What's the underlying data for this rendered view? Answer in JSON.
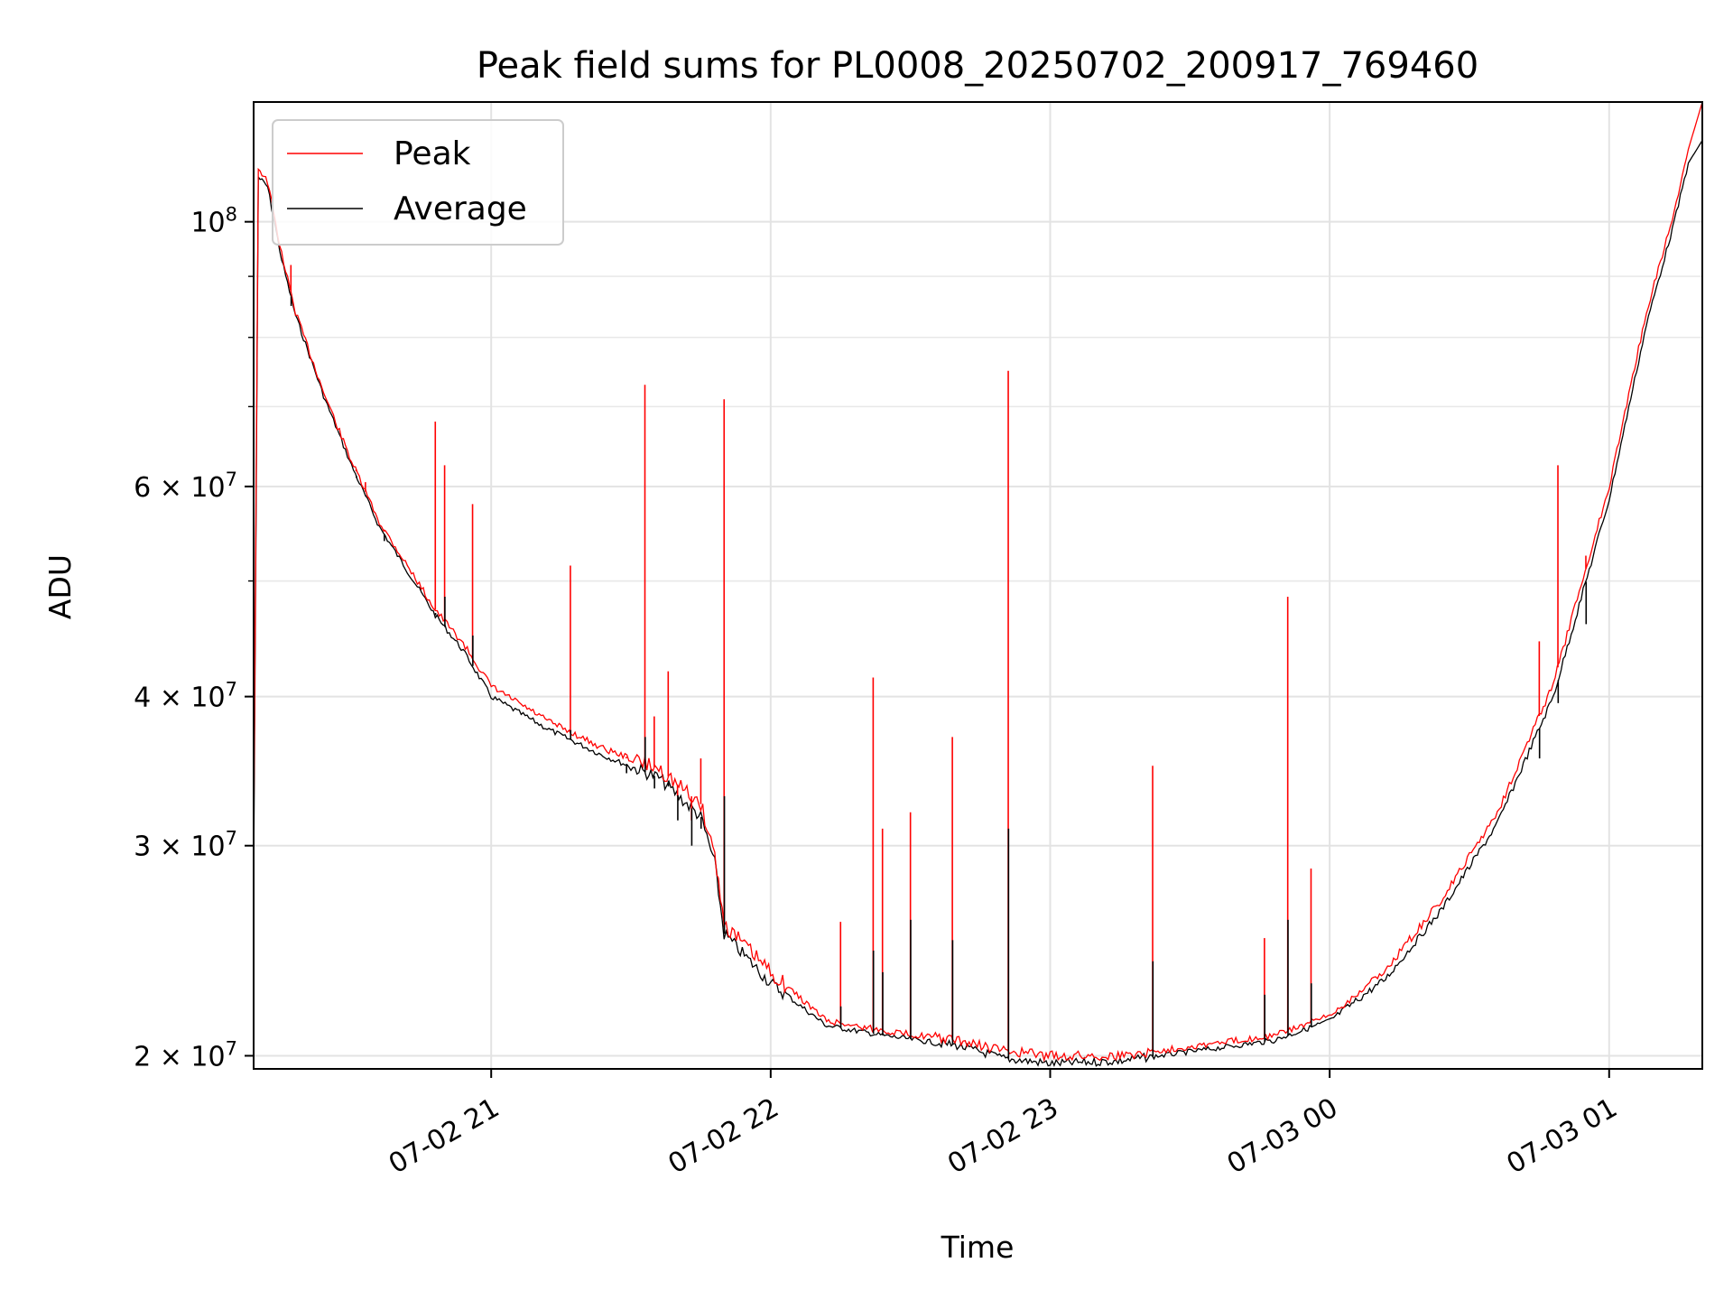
{
  "chart_data": {
    "type": "line",
    "title": "Peak field sums for PL0008_20250702_200917_769460",
    "xlabel": "Time",
    "ylabel": "ADU",
    "y_scale": "log",
    "xlim": [
      "2025-07-02 20:09",
      "2025-07-03 01:20"
    ],
    "ylim": [
      19500000,
      126000000
    ],
    "grid": true,
    "legend_placement": "top-left",
    "x_ticks": [
      {
        "value": "2025-07-02 21:00",
        "label": "07-02 21"
      },
      {
        "value": "2025-07-02 22:00",
        "label": "07-02 22"
      },
      {
        "value": "2025-07-02 23:00",
        "label": "07-02 23"
      },
      {
        "value": "2025-07-03 00:00",
        "label": "07-03 00"
      },
      {
        "value": "2025-07-03 01:00",
        "label": "07-03 01"
      }
    ],
    "y_ticks": [
      {
        "value": 20000000,
        "label": "2 × 10^7",
        "mantissa": "2 × 10",
        "exp": "7"
      },
      {
        "value": 30000000,
        "label": "3 × 10^7",
        "mantissa": "3 × 10",
        "exp": "7"
      },
      {
        "value": 40000000,
        "label": "4 × 10^7",
        "mantissa": "4 × 10",
        "exp": "7"
      },
      {
        "value": 60000000,
        "label": "6 × 10^7",
        "mantissa": "6 × 10",
        "exp": "7"
      },
      {
        "value": 100000000,
        "label": "10^8",
        "mantissa": "10",
        "exp": "8"
      }
    ],
    "series": [
      {
        "name": "Peak",
        "color": "#ff0000",
        "points": [
          [
            "2025-07-02 20:09",
            30000000
          ],
          [
            "2025-07-02 20:10",
            111000000
          ],
          [
            "2025-07-02 20:12",
            108000000
          ],
          [
            "2025-07-02 20:15",
            94000000
          ],
          [
            "2025-07-02 20:18",
            84000000
          ],
          [
            "2025-07-02 20:24",
            72000000
          ],
          [
            "2025-07-02 20:30",
            63000000
          ],
          [
            "2025-07-02 20:36",
            56000000
          ],
          [
            "2025-07-02 20:42",
            51500000
          ],
          [
            "2025-07-02 20:48",
            47300000
          ],
          [
            "2025-07-02 20:54",
            44300000
          ],
          [
            "2025-07-02 21:00",
            40800000
          ],
          [
            "2025-07-02 21:12",
            38200000
          ],
          [
            "2025-07-02 21:24",
            36200000
          ],
          [
            "2025-07-02 21:36",
            34800000
          ],
          [
            "2025-07-02 21:45",
            32500000
          ],
          [
            "2025-07-02 21:48",
            29500000
          ],
          [
            "2025-07-02 21:50",
            25800000
          ],
          [
            "2025-07-02 22:00",
            23500000
          ],
          [
            "2025-07-02 22:12",
            21400000
          ],
          [
            "2025-07-02 22:24",
            21000000
          ],
          [
            "2025-07-02 22:40",
            20600000
          ],
          [
            "2025-07-02 22:50",
            20200000
          ],
          [
            "2025-07-02 23:00",
            20000000
          ],
          [
            "2025-07-02 23:15",
            20000000
          ],
          [
            "2025-07-02 23:36",
            20500000
          ],
          [
            "2025-07-02 23:48",
            20800000
          ],
          [
            "2025-07-03 00:00",
            21600000
          ],
          [
            "2025-07-03 00:12",
            23600000
          ],
          [
            "2025-07-03 00:24",
            27000000
          ],
          [
            "2025-07-03 00:36",
            32000000
          ],
          [
            "2025-07-03 00:48",
            41000000
          ],
          [
            "2025-07-03 01:00",
            60000000
          ],
          [
            "2025-07-03 01:08",
            84000000
          ],
          [
            "2025-07-03 01:14",
            102000000
          ],
          [
            "2025-07-03 01:17",
            115000000
          ],
          [
            "2025-07-03 01:20",
            126000000
          ]
        ]
      },
      {
        "name": "Average",
        "color": "#000000",
        "points": [
          [
            "2025-07-02 20:09",
            28000000
          ],
          [
            "2025-07-02 20:10",
            109000000
          ],
          [
            "2025-07-02 20:12",
            107000000
          ],
          [
            "2025-07-02 20:15",
            93000000
          ],
          [
            "2025-07-02 20:18",
            83500000
          ],
          [
            "2025-07-02 20:24",
            71500000
          ],
          [
            "2025-07-02 20:30",
            62500000
          ],
          [
            "2025-07-02 20:36",
            55500000
          ],
          [
            "2025-07-02 20:42",
            51000000
          ],
          [
            "2025-07-02 20:48",
            46800000
          ],
          [
            "2025-07-02 20:54",
            43700000
          ],
          [
            "2025-07-02 21:00",
            40000000
          ],
          [
            "2025-07-02 21:12",
            37600000
          ],
          [
            "2025-07-02 21:24",
            35700000
          ],
          [
            "2025-07-02 21:36",
            34200000
          ],
          [
            "2025-07-02 21:45",
            31700000
          ],
          [
            "2025-07-02 21:48",
            29000000
          ],
          [
            "2025-07-02 21:50",
            25300000
          ],
          [
            "2025-07-02 22:00",
            23000000
          ],
          [
            "2025-07-02 22:12",
            21200000
          ],
          [
            "2025-07-02 22:24",
            20800000
          ],
          [
            "2025-07-02 22:40",
            20400000
          ],
          [
            "2025-07-02 22:50",
            19900000
          ],
          [
            "2025-07-02 23:00",
            19700000
          ],
          [
            "2025-07-02 23:15",
            19800000
          ],
          [
            "2025-07-02 23:36",
            20300000
          ],
          [
            "2025-07-02 23:48",
            20600000
          ],
          [
            "2025-07-03 00:00",
            21400000
          ],
          [
            "2025-07-03 00:12",
            23200000
          ],
          [
            "2025-07-03 00:24",
            26500000
          ],
          [
            "2025-07-03 00:36",
            31300000
          ],
          [
            "2025-07-03 00:48",
            40000000
          ],
          [
            "2025-07-03 01:00",
            58500000
          ],
          [
            "2025-07-03 01:08",
            82000000
          ],
          [
            "2025-07-03 01:14",
            100000000
          ],
          [
            "2025-07-03 01:17",
            112000000
          ],
          [
            "2025-07-03 01:20",
            117000000
          ]
        ]
      }
    ],
    "spikes": [
      {
        "time": "2025-07-02 20:17",
        "peak": 92000000,
        "average": 85000000
      },
      {
        "time": "2025-07-02 20:31",
        "peak": 62000000,
        "average": 61000000
      },
      {
        "time": "2025-07-02 20:33",
        "peak": 60500000,
        "average": 59000000
      },
      {
        "time": "2025-07-02 20:37",
        "peak": 55000000,
        "average": 54000000
      },
      {
        "time": "2025-07-02 20:48",
        "peak": 68000000,
        "average": 47000000
      },
      {
        "time": "2025-07-02 20:50",
        "peak": 62500000,
        "average": 48500000
      },
      {
        "time": "2025-07-02 20:56",
        "peak": 58000000,
        "average": 45000000
      },
      {
        "time": "2025-07-02 21:17",
        "peak": 51500000,
        "average": 37500000
      },
      {
        "time": "2025-07-02 21:29",
        "peak": 35500000,
        "average": 34500000
      },
      {
        "time": "2025-07-02 21:33",
        "peak": 73000000,
        "average": 37000000
      },
      {
        "time": "2025-07-02 21:35",
        "peak": 38500000,
        "average": 33500000
      },
      {
        "time": "2025-07-02 21:38",
        "peak": 42000000,
        "average": 34000000
      },
      {
        "time": "2025-07-02 21:40",
        "peak": 33000000,
        "average": 31500000
      },
      {
        "time": "2025-07-02 21:43",
        "peak": 31500000,
        "average": 30000000
      },
      {
        "time": "2025-07-02 21:45",
        "peak": 35500000,
        "average": 31000000
      },
      {
        "time": "2025-07-02 21:50",
        "peak": 71000000,
        "average": 33000000
      },
      {
        "time": "2025-07-02 22:15",
        "peak": 25900000,
        "average": 22000000
      },
      {
        "time": "2025-07-02 22:22",
        "peak": 41500000,
        "average": 24500000
      },
      {
        "time": "2025-07-02 22:24",
        "peak": 31000000,
        "average": 23500000
      },
      {
        "time": "2025-07-02 22:30",
        "peak": 32000000,
        "average": 26000000
      },
      {
        "time": "2025-07-02 22:39",
        "peak": 37000000,
        "average": 25000000
      },
      {
        "time": "2025-07-02 22:51",
        "peak": 75000000,
        "average": 31000000
      },
      {
        "time": "2025-07-02 23:22",
        "peak": 35000000,
        "average": 24000000
      },
      {
        "time": "2025-07-02 23:46",
        "peak": 25100000,
        "average": 22500000
      },
      {
        "time": "2025-07-02 23:51",
        "peak": 48500000,
        "average": 26000000
      },
      {
        "time": "2025-07-02 23:56",
        "peak": 28700000,
        "average": 23000000
      },
      {
        "time": "2025-07-03 00:45",
        "peak": 44500000,
        "average": 35500000
      },
      {
        "time": "2025-07-03 00:49",
        "peak": 62500000,
        "average": 39500000
      },
      {
        "time": "2025-07-03 00:55",
        "peak": 52500000,
        "average": 46000000
      }
    ]
  }
}
